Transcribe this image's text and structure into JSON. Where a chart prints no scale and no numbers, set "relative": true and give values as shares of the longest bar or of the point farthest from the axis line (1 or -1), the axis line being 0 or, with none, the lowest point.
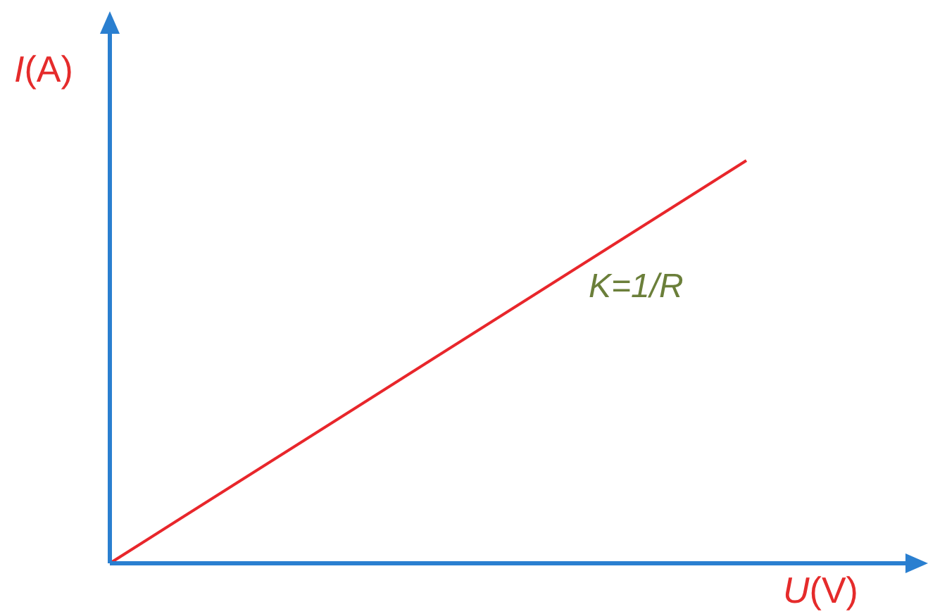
{
  "chart_data": {
    "type": "line",
    "xlabel": "U(V)",
    "ylabel": "I(A)",
    "categories": [
      null,
      null
    ],
    "relative": true,
    "marker": "none",
    "series": [
      {
        "color": "#e8262b",
        "values": [
          0,
          1
        ]
      }
    ],
    "annotations": [
      "K=1/R"
    ]
  }
}
